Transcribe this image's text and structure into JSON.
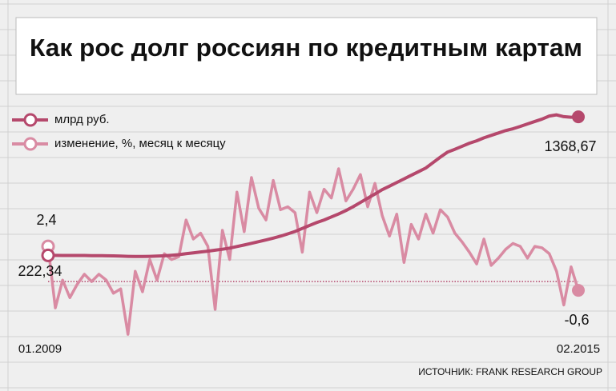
{
  "chart_data": {
    "type": "line",
    "title": "Как рос долг россиян по кредитным картам",
    "source": "ИСТОЧНИК: FRANK RESEARCH GROUP",
    "categories": [
      "01.2009",
      null,
      null,
      null,
      null,
      null,
      null,
      null,
      null,
      null,
      null,
      null,
      null,
      null,
      null,
      null,
      null,
      null,
      null,
      null,
      null,
      null,
      null,
      null,
      null,
      null,
      null,
      null,
      null,
      null,
      null,
      null,
      null,
      null,
      null,
      null,
      null,
      null,
      null,
      null,
      null,
      null,
      null,
      null,
      null,
      null,
      null,
      null,
      null,
      null,
      null,
      null,
      null,
      null,
      null,
      null,
      null,
      null,
      null,
      null,
      null,
      null,
      null,
      null,
      null,
      null,
      null,
      null,
      null,
      null,
      null,
      null,
      null,
      "02.2015"
    ],
    "series": [
      {
        "name": "млрд руб.",
        "color": "#b5486c",
        "axis": "y",
        "values": [
          222.34,
          222,
          221,
          221,
          221,
          221,
          220,
          220,
          219,
          218,
          216,
          214,
          213,
          213,
          214,
          216,
          219,
          223,
          228,
          236,
          243,
          250,
          257,
          265,
          273,
          282,
          295,
          308,
          322,
          336,
          350,
          365,
          381,
          400,
          420,
          445,
          470,
          494,
          515,
          540,
          565,
          593,
          625,
          660,
          695,
          730,
          766,
          795,
          825,
          855,
          885,
          915,
          945,
          990,
          1035,
          1077,
          1100,
          1125,
          1150,
          1170,
          1195,
          1215,
          1235,
          1255,
          1270,
          1289,
          1310,
          1330,
          1350,
          1375,
          1385,
          1370,
          1365,
          1368.67
        ],
        "value_labels": [
          "222,34",
          null,
          null,
          null,
          null,
          null,
          null,
          null,
          null,
          null,
          null,
          null,
          null,
          null,
          null,
          null,
          null,
          null,
          null,
          null,
          null,
          null,
          null,
          null,
          null,
          null,
          null,
          null,
          null,
          null,
          null,
          null,
          null,
          null,
          null,
          null,
          null,
          null,
          null,
          null,
          null,
          null,
          null,
          null,
          null,
          null,
          null,
          null,
          null,
          null,
          null,
          null,
          null,
          null,
          null,
          null,
          null,
          null,
          null,
          null,
          null,
          null,
          null,
          null,
          null,
          null,
          null,
          null,
          null,
          null,
          null,
          null,
          null,
          "1368,67"
        ]
      },
      {
        "name": "изменение, %, месяц к месяцу",
        "color": "#d98ba3",
        "axis": "y2",
        "values": [
          2.4,
          -1.8,
          0.1,
          -1.1,
          -0.2,
          0.5,
          0,
          0.5,
          0.1,
          -0.8,
          -0.5,
          -3.6,
          0.7,
          -0.7,
          1.5,
          0.1,
          1.9,
          1.5,
          1.7,
          4.2,
          2.9,
          3.3,
          2.4,
          -1.9,
          3.5,
          1.5,
          6.1,
          3.4,
          7.1,
          5.0,
          4.2,
          6.9,
          4.9,
          5.1,
          4.7,
          2.0,
          6.1,
          4.7,
          6.3,
          5.7,
          7.7,
          5.5,
          6.3,
          7.3,
          5.1,
          6.7,
          4.5,
          3.1,
          4.6,
          1.3,
          3.9,
          2.9,
          4.6,
          3.3,
          4.9,
          4.4,
          3.3,
          2.7,
          2.0,
          1.2,
          2.9,
          1.1,
          1.6,
          2.2,
          2.6,
          2.4,
          1.6,
          2.4,
          2.3,
          1.9,
          0.7,
          -1.6,
          1.0,
          -0.6
        ],
        "value_labels": [
          "2,4",
          null,
          null,
          null,
          null,
          null,
          null,
          null,
          null,
          null,
          null,
          null,
          null,
          null,
          null,
          null,
          null,
          null,
          null,
          null,
          null,
          null,
          null,
          null,
          null,
          null,
          null,
          null,
          null,
          null,
          null,
          null,
          null,
          null,
          null,
          null,
          null,
          null,
          null,
          null,
          null,
          null,
          null,
          null,
          null,
          null,
          null,
          null,
          null,
          null,
          null,
          null,
          null,
          null,
          null,
          null,
          null,
          null,
          null,
          null,
          null,
          null,
          null,
          null,
          null,
          null,
          null,
          null,
          null,
          null,
          null,
          null,
          null,
          "-0,6"
        ]
      }
    ],
    "ylim": [
      -510,
      1740
    ],
    "y2lim": [
      -4.25,
      14.3
    ],
    "zero_line": true
  }
}
